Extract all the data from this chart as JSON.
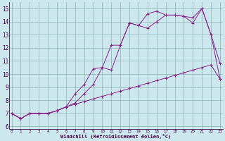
{
  "xlabel": "Windchill (Refroidissement éolien,°C)",
  "bg_color": "#cce8ee",
  "grid_color": "#99bbbb",
  "line_color": "#882288",
  "x_ticks": [
    0,
    1,
    2,
    3,
    4,
    5,
    6,
    7,
    8,
    9,
    10,
    11,
    12,
    13,
    14,
    15,
    16,
    17,
    18,
    19,
    20,
    21,
    22,
    23
  ],
  "y_ticks": [
    6,
    7,
    8,
    9,
    10,
    11,
    12,
    13,
    14,
    15
  ],
  "ylim": [
    5.8,
    15.5
  ],
  "xlim": [
    -0.3,
    23.3
  ],
  "curve1": [
    7.0,
    6.6,
    7.0,
    7.0,
    7.0,
    7.2,
    7.5,
    8.5,
    9.2,
    10.4,
    10.5,
    12.2,
    12.2,
    13.9,
    13.7,
    14.6,
    14.8,
    14.5,
    14.5,
    14.4,
    14.3,
    15.0,
    13.0,
    10.8
  ],
  "curve2": [
    7.0,
    6.6,
    7.0,
    7.0,
    7.0,
    7.2,
    7.5,
    7.8,
    8.5,
    9.2,
    10.5,
    10.3,
    12.2,
    13.9,
    13.7,
    13.5,
    14.0,
    14.5,
    14.5,
    14.4,
    13.9,
    15.0,
    13.0,
    9.6
  ],
  "curve3": [
    7.0,
    6.6,
    7.0,
    7.0,
    7.0,
    7.2,
    7.5,
    7.7,
    7.9,
    8.1,
    8.3,
    8.5,
    8.7,
    8.9,
    9.1,
    9.3,
    9.5,
    9.7,
    9.9,
    10.1,
    10.3,
    10.5,
    10.7,
    9.6
  ]
}
